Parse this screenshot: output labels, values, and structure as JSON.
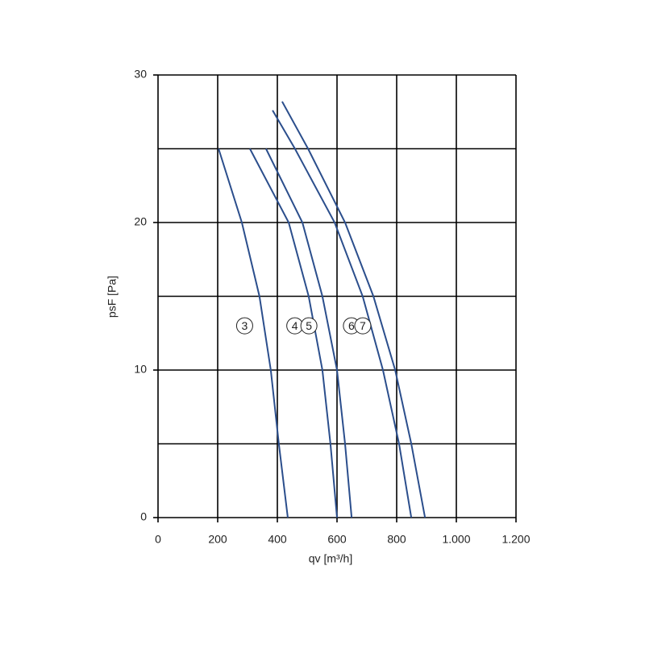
{
  "chart_data": {
    "type": "line",
    "x_label": "qv [m³/h]",
    "y_label": "psF [Pa]",
    "xlim": [
      0,
      1200
    ],
    "ylim": [
      0,
      30
    ],
    "xticks": [
      0,
      200,
      400,
      600,
      800,
      {
        "value": 1000,
        "label": "1.000"
      },
      {
        "value": 1200,
        "label": "1.200"
      }
    ],
    "yticks": [
      0,
      10,
      20,
      30
    ],
    "yminorticks": [
      5,
      15,
      25
    ],
    "grid": true,
    "series": [
      {
        "name": "3",
        "color": "#2b4e8c",
        "x": [
          203,
          281,
          340,
          378,
          405,
          435
        ],
        "values": [
          25,
          20,
          15,
          10,
          5,
          0
        ]
      },
      {
        "name": "4",
        "color": "#2b4e8c",
        "x": [
          308,
          438,
          505,
          551,
          578,
          600
        ],
        "values": [
          25,
          20,
          15,
          10,
          5,
          0
        ]
      },
      {
        "name": "5",
        "color": "#2b4e8c",
        "x": [
          362,
          484,
          551,
          600,
          627,
          649
        ],
        "values": [
          25,
          20,
          15,
          10,
          5,
          0
        ]
      },
      {
        "name": "6",
        "color": "#2b4e8c",
        "x": [
          384,
          459,
          592,
          686,
          754,
          808,
          849
        ],
        "values": [
          27.6,
          25,
          20,
          15,
          10,
          5,
          0
        ]
      },
      {
        "name": "7",
        "color": "#2b4e8c",
        "x": [
          416,
          503,
          627,
          722,
          795,
          849,
          895
        ],
        "values": [
          28.2,
          25,
          20,
          15,
          10,
          5,
          0
        ]
      }
    ]
  }
}
